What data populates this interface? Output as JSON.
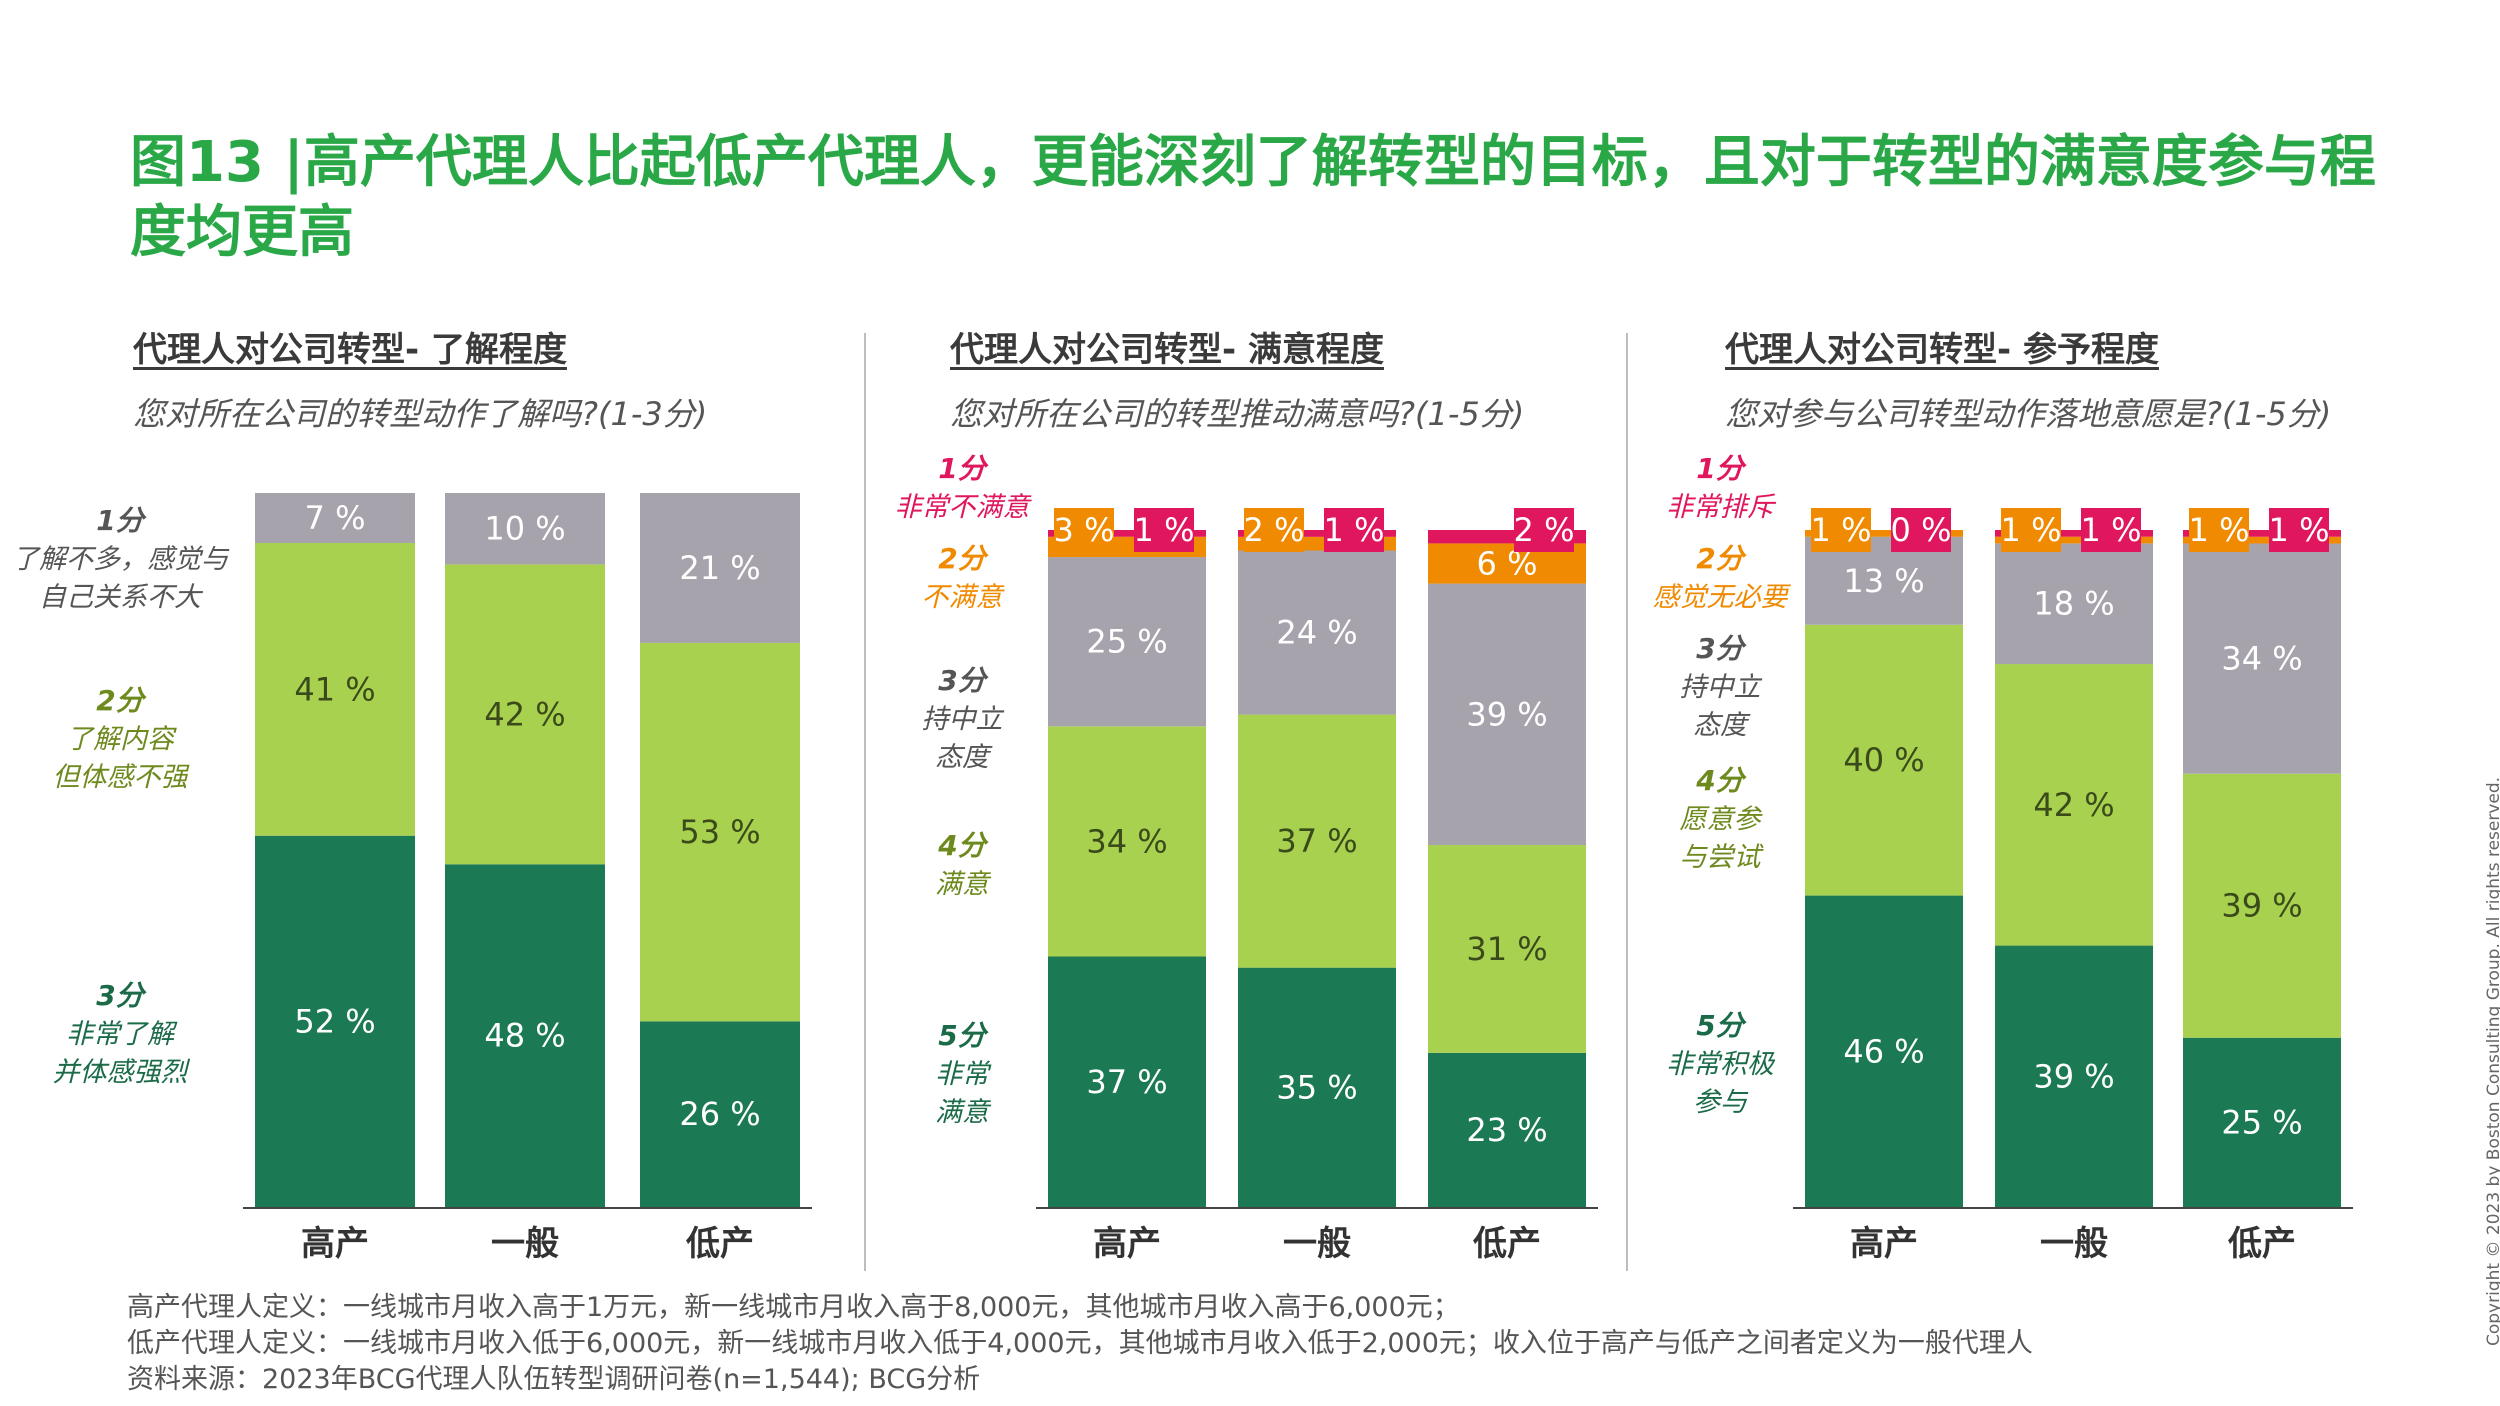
{
  "title": "图13 |高产代理人比起低产代理人，更能深刻了解转型的目标，且对于转型的满意度参与程度均更高",
  "colors": {
    "title": "#2aa848",
    "score1_red": "#e0175e",
    "score2_orange": "#f08a00",
    "neutral_gray": "#a7a3ad",
    "light_green": "#a8d14f",
    "dark_green": "#1b7a54"
  },
  "chart_data": [
    {
      "type": "bar",
      "stacked": true,
      "title": "代理人对公司转型- 了解程度",
      "subtitle": "您对所在公司的转型动作了解吗?(1-3分)",
      "categories": [
        "高产",
        "一般",
        "低产"
      ],
      "series": [
        {
          "key": "s3",
          "values": [
            52,
            48,
            26
          ],
          "labels": [
            "52 %",
            "48 %",
            "26 %"
          ],
          "color": "#1b7a54",
          "text_color": "#ffffff"
        },
        {
          "key": "s2",
          "values": [
            41,
            42,
            53
          ],
          "labels": [
            "41 %",
            "42 %",
            "53 %"
          ],
          "color": "#a8d14f",
          "text_color": "#3a4a1a"
        },
        {
          "key": "s1",
          "values": [
            7,
            10,
            21
          ],
          "labels": [
            "7 %",
            "10 %",
            "21 %"
          ],
          "color": "#a7a3ad",
          "text_color": "#ffffff"
        }
      ],
      "legend": [
        {
          "score": "1分",
          "desc": [
            "了解不多，感觉与",
            "自己关系不大"
          ],
          "color": "#555555"
        },
        {
          "score": "2分",
          "desc": [
            "了解内容",
            "但体感不强"
          ],
          "color": "#6e8a1e"
        },
        {
          "score": "3分",
          "desc": [
            "非常了解",
            "并体感强烈"
          ],
          "color": "#1b6b48"
        }
      ]
    },
    {
      "type": "bar",
      "stacked": true,
      "title": "代理人对公司转型- 满意程度",
      "subtitle": "您对所在公司的转型推动满意吗?(1-5分)",
      "categories": [
        "高产",
        "一般",
        "低产"
      ],
      "series": [
        {
          "key": "s5",
          "values": [
            37,
            35,
            23
          ],
          "labels": [
            "37 %",
            "35 %",
            "23 %"
          ],
          "color": "#1b7a54",
          "text_color": "#ffffff"
        },
        {
          "key": "s4",
          "values": [
            34,
            37,
            31
          ],
          "labels": [
            "34 %",
            "37 %",
            "31 %"
          ],
          "color": "#a8d14f",
          "text_color": "#3a4a1a"
        },
        {
          "key": "s3",
          "values": [
            25,
            24,
            39
          ],
          "labels": [
            "25 %",
            "24 %",
            "39 %"
          ],
          "color": "#a7a3ad",
          "text_color": "#ffffff"
        },
        {
          "key": "s2",
          "values": [
            3,
            2,
            6
          ],
          "labels": [
            "3 %",
            "2 %",
            "6 %"
          ],
          "color": "#f08a00",
          "text_color": "#ffffff"
        },
        {
          "key": "s1",
          "values": [
            1,
            1,
            2
          ],
          "labels": [
            "1 %",
            "1 %",
            "2 %"
          ],
          "color": "#e0175e",
          "text_color": "#ffffff"
        }
      ],
      "legend": [
        {
          "score": "1分",
          "desc": [
            "非常不满意"
          ],
          "color": "#e0175e"
        },
        {
          "score": "2分",
          "desc": [
            "不满意"
          ],
          "color": "#f08a00"
        },
        {
          "score": "3分",
          "desc": [
            "持中立",
            "态度"
          ],
          "color": "#555555"
        },
        {
          "score": "4分",
          "desc": [
            "满意"
          ],
          "color": "#6e8a1e"
        },
        {
          "score": "5分",
          "desc": [
            "非常",
            "满意"
          ],
          "color": "#1b6b48"
        }
      ]
    },
    {
      "type": "bar",
      "stacked": true,
      "title": "代理人对公司转型- 参予程度",
      "subtitle": "您对参与公司转型动作落地意愿是?(1-5分)",
      "categories": [
        "高产",
        "一般",
        "低产"
      ],
      "series": [
        {
          "key": "s5",
          "values": [
            46,
            39,
            25
          ],
          "labels": [
            "46 %",
            "39 %",
            "25 %"
          ],
          "color": "#1b7a54",
          "text_color": "#ffffff"
        },
        {
          "key": "s4",
          "values": [
            40,
            42,
            39
          ],
          "labels": [
            "40 %",
            "42 %",
            "39 %"
          ],
          "color": "#a8d14f",
          "text_color": "#3a4a1a"
        },
        {
          "key": "s3",
          "values": [
            13,
            18,
            34
          ],
          "labels": [
            "13 %",
            "18 %",
            "34 %"
          ],
          "color": "#a7a3ad",
          "text_color": "#ffffff"
        },
        {
          "key": "s2",
          "values": [
            1,
            1,
            1
          ],
          "labels": [
            "1 %",
            "1 %",
            "1 %"
          ],
          "color": "#f08a00",
          "text_color": "#ffffff"
        },
        {
          "key": "s1",
          "values": [
            0,
            1,
            1
          ],
          "labels": [
            "0 %",
            "1 %",
            "1 %"
          ],
          "color": "#e0175e",
          "text_color": "#ffffff"
        }
      ],
      "legend": [
        {
          "score": "1分",
          "desc": [
            "非常排斥"
          ],
          "color": "#e0175e"
        },
        {
          "score": "2分",
          "desc": [
            "感觉无必要"
          ],
          "color": "#f08a00"
        },
        {
          "score": "3分",
          "desc": [
            "持中立",
            "态度"
          ],
          "color": "#555555"
        },
        {
          "score": "4分",
          "desc": [
            "愿意参",
            "与尝试"
          ],
          "color": "#6e8a1e"
        },
        {
          "score": "5分",
          "desc": [
            "非常积极",
            "参与"
          ],
          "color": "#1b6b48"
        }
      ]
    }
  ],
  "footnotes": [
    "高产代理人定义：一线城市月收入高于1万元，新一线城市月收入高于8,000元，其他城市月收入高于6,000元；",
    "低产代理人定义：一线城市月收入低于6,000元，新一线城市月收入低于4,000元，其他城市月收入低于2,000元；收入位于高产与低产之间者定义为一般代理人",
    "资料来源：2023年BCG代理人队伍转型调研问卷(n=1,544); BCG分析"
  ],
  "copyright": "Copyright © 2023 by Boston Consulting Group. All rights reserved."
}
